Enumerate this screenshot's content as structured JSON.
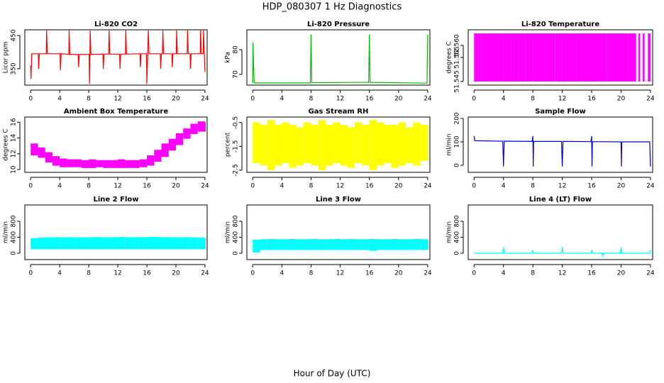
{
  "title": "HDP_080307  1 Hz Diagnostics",
  "x_label": "Hour of Day (UTC)",
  "chart_data": [
    {
      "type": "line",
      "title": "Li-820 CO2",
      "y_label": "Licor ppm",
      "color": "#ff0000",
      "xlim": [
        -0.8,
        24.3
      ],
      "xticks": [
        0,
        4,
        8,
        12,
        16,
        20,
        24
      ],
      "ylim": [
        301,
        467
      ],
      "yticks": [
        350,
        450
      ],
      "x": [
        0,
        0.05,
        0.15,
        1.05,
        1.1,
        1.2,
        2.15,
        2.2,
        2.3,
        4.05,
        4.1,
        4.2,
        5.25,
        5.3,
        5.4,
        6.55,
        6.6,
        6.7,
        8.05,
        8.1,
        8.2,
        8.3,
        9.95,
        10,
        10.1,
        10.75,
        10.8,
        10.9,
        12.25,
        12.3,
        12.4,
        13.05,
        13.1,
        13.2,
        15.05,
        15.1,
        15.2,
        15.95,
        16,
        16.2,
        16.3,
        17.85,
        17.9,
        18,
        18.15,
        18.2,
        18.3,
        19.45,
        19.5,
        19.6,
        20.05,
        20.1,
        20.2,
        21.55,
        21.6,
        21.7,
        21.95,
        22,
        22.1,
        23.35,
        23.4,
        23.5,
        23.75,
        23.8,
        24
      ],
      "values": [
        360,
        320,
        395,
        395,
        350,
        395,
        395,
        465,
        395,
        395,
        345,
        395,
        393,
        465,
        393,
        393,
        355,
        393,
        393,
        305,
        465,
        393,
        394,
        350,
        394,
        394,
        465,
        394,
        394,
        350,
        394,
        394,
        465,
        394,
        395,
        355,
        395,
        395,
        305,
        465,
        395,
        395,
        350,
        395,
        395,
        465,
        395,
        395,
        355,
        395,
        395,
        465,
        395,
        395,
        465,
        395,
        395,
        350,
        395,
        395,
        465,
        395,
        395,
        465,
        340
      ]
    },
    {
      "type": "line",
      "title": "Li-820 Pressure",
      "y_label": "kPa",
      "color": "#00bb00",
      "xlim": [
        -0.8,
        24.3
      ],
      "xticks": [
        0,
        4,
        8,
        12,
        16,
        20,
        24
      ],
      "ylim": [
        65.7,
        88
      ],
      "yticks": [
        70,
        80
      ],
      "x": [
        0,
        0.05,
        0.1,
        0.2,
        7.9,
        8,
        8.1,
        15.9,
        16,
        16.1,
        23.9,
        24
      ],
      "values": [
        66.5,
        83,
        75,
        66.6,
        66.6,
        86,
        66.7,
        66.8,
        86,
        66.8,
        66.5,
        86
      ]
    },
    {
      "type": "band",
      "title": "Li-820 Temperature",
      "y_label": "degrees C",
      "color": "#ff00ff",
      "xlim": [
        -0.8,
        24.3
      ],
      "xticks": [
        0,
        4,
        8,
        12,
        16,
        20,
        24
      ],
      "ylim": [
        51.5435,
        51.5665
      ],
      "yticks": [
        51.545,
        51.555,
        {
          "value": 51.56,
          "label": "51.560"
        }
      ],
      "x": [
        0,
        1,
        2,
        3,
        4,
        5,
        6,
        7,
        8,
        9,
        10,
        11,
        12,
        13,
        14,
        15,
        16,
        17,
        18,
        19,
        20,
        21,
        22.05,
        22.35,
        22.6,
        22.95,
        23.2,
        23.65,
        24
      ],
      "low": [
        51.545,
        51.545,
        51.545,
        51.545,
        51.545,
        51.545,
        51.545,
        51.545,
        51.545,
        51.545,
        51.545,
        51.545,
        51.545,
        51.545,
        51.545,
        51.545,
        51.545,
        51.545,
        51.545,
        51.545,
        51.545,
        51.545,
        null,
        51.545,
        null,
        51.545,
        null,
        51.545,
        null
      ],
      "high": [
        51.565,
        51.565,
        51.565,
        51.565,
        51.565,
        51.565,
        51.565,
        51.565,
        51.565,
        51.565,
        51.565,
        51.565,
        51.565,
        51.565,
        51.565,
        51.565,
        51.565,
        51.565,
        51.565,
        51.565,
        51.565,
        51.565,
        null,
        51.565,
        null,
        51.565,
        null,
        51.565,
        null
      ]
    },
    {
      "type": "band",
      "title": "Ambient Box Temperature",
      "y_label": "degrees C",
      "color": "#ff00ff",
      "xlim": [
        -0.8,
        24.3
      ],
      "xticks": [
        0,
        4,
        8,
        12,
        16,
        20,
        24
      ],
      "ylim": [
        9.65,
        16.65
      ],
      "yticks": [
        10,
        12,
        14,
        16
      ],
      "x": [
        0,
        1,
        2,
        3,
        4,
        5,
        6,
        7,
        8,
        9,
        10,
        11,
        12,
        13,
        14,
        15,
        16,
        17,
        18,
        19,
        20,
        21,
        22,
        23,
        24
      ],
      "low": [
        11.8,
        11.5,
        10.9,
        10.5,
        10.3,
        10.3,
        10.3,
        10.2,
        10.2,
        10.3,
        10.2,
        10.2,
        10.2,
        10.2,
        10.2,
        10.3,
        10.5,
        11,
        11.6,
        12.4,
        13.1,
        13.9,
        14.5,
        14.8,
        14.8
      ],
      "high": [
        13.3,
        12.8,
        12.2,
        11.7,
        11.4,
        11.3,
        11.3,
        11.2,
        11.3,
        11.2,
        11.2,
        11.2,
        11.3,
        11.2,
        11.2,
        11.3,
        11.8,
        12.5,
        13.3,
        13.9,
        14.6,
        15.2,
        15.8,
        16.1,
        16
      ]
    },
    {
      "type": "band",
      "title": "Gas Stream RH",
      "y_label": "percent",
      "color": "#ffff00",
      "xlim": [
        -0.8,
        24.3
      ],
      "xticks": [
        0,
        4,
        8,
        12,
        16,
        20,
        24
      ],
      "ylim": [
        -2.59,
        -0.27
      ],
      "yticks": [
        -2.5,
        -1.5,
        -0.5
      ],
      "x": [
        0,
        1,
        2,
        3,
        4,
        5,
        6,
        7,
        8,
        9,
        10,
        11,
        12,
        13,
        14,
        15,
        16,
        17,
        18,
        19,
        20,
        21,
        22,
        23,
        24
      ],
      "low": [
        -2.2,
        -2.3,
        -2.5,
        -2.3,
        -2.2,
        -2.4,
        -2.3,
        -2.2,
        -2.3,
        -2.5,
        -2.3,
        -2.2,
        -2.3,
        -2.4,
        -2.2,
        -2.3,
        -2.5,
        -2.3,
        -2.2,
        -2.4,
        -2.3,
        -2.2,
        -2.3,
        -2.1,
        -2.2
      ],
      "high": [
        -0.5,
        -0.6,
        -0.4,
        -0.6,
        -0.5,
        -0.6,
        -0.7,
        -0.5,
        -0.6,
        -0.4,
        -0.6,
        -0.5,
        -0.6,
        -0.7,
        -0.5,
        -0.6,
        -0.4,
        -0.5,
        -0.6,
        -0.6,
        -0.5,
        -0.7,
        -0.5,
        -0.6,
        -0.6
      ]
    },
    {
      "type": "line",
      "title": "Sample Flow",
      "y_label": "ml/min",
      "color": "#0000dd",
      "xlim": [
        -0.8,
        24.3
      ],
      "xticks": [
        0,
        4,
        8,
        12,
        16,
        20,
        24
      ],
      "ylim": [
        -30,
        206
      ],
      "yticks": [
        0,
        100,
        200
      ],
      "x": [
        0,
        0.1,
        3.9,
        4,
        4.1,
        7.9,
        8,
        8.05,
        8.1,
        11.9,
        12,
        12.1,
        15.9,
        16,
        16.05,
        16.1,
        19.9,
        20,
        20.05,
        20.1,
        23.9,
        24
      ],
      "values": [
        125,
        105,
        103,
        -5,
        103,
        102,
        125,
        -5,
        102,
        102,
        -5,
        102,
        101,
        125,
        -5,
        101,
        100,
        95,
        -5,
        100,
        100,
        -5
      ]
    },
    {
      "type": "band",
      "title": "Line 2 Flow",
      "y_label": "ml/min",
      "color": "#00ffff",
      "xlim": [
        -0.8,
        24.3
      ],
      "xticks": [
        0,
        4,
        8,
        12,
        16,
        20,
        24
      ],
      "ylim": [
        -160,
        1208
      ],
      "yticks": [
        0,
        400,
        800
      ],
      "x": [
        0,
        1,
        2,
        3,
        4,
        5,
        6,
        7,
        8,
        9,
        10,
        11,
        12,
        13,
        14,
        15,
        16,
        17,
        18,
        19,
        20,
        21,
        22,
        23,
        24
      ],
      "low": [
        100,
        100,
        100,
        100,
        100,
        100,
        100,
        100,
        100,
        100,
        100,
        100,
        100,
        100,
        100,
        100,
        100,
        100,
        100,
        100,
        100,
        100,
        100,
        100,
        100
      ],
      "high": [
        380,
        390,
        395,
        400,
        395,
        400,
        395,
        395,
        400,
        400,
        395,
        400,
        405,
        400,
        400,
        400,
        410,
        405,
        400,
        400,
        395,
        400,
        395,
        390,
        380
      ]
    },
    {
      "type": "band",
      "title": "Line 3 Flow",
      "y_label": "ml/min",
      "color": "#00ffff",
      "xlim": [
        -0.8,
        24.3
      ],
      "xticks": [
        0,
        4,
        8,
        12,
        16,
        20,
        24
      ],
      "ylim": [
        -160,
        1208
      ],
      "yticks": [
        0,
        400,
        800
      ],
      "x": [
        0,
        1,
        2,
        3,
        4,
        5,
        6,
        7,
        8,
        9,
        10,
        11,
        12,
        13,
        14,
        15,
        16,
        17,
        18,
        19,
        20,
        21,
        22,
        23,
        24
      ],
      "low": [
        20,
        80,
        80,
        80,
        80,
        80,
        80,
        80,
        80,
        80,
        80,
        80,
        80,
        80,
        80,
        80,
        60,
        80,
        80,
        80,
        80,
        80,
        80,
        80,
        80
      ],
      "high": [
        340,
        350,
        355,
        350,
        350,
        355,
        350,
        350,
        355,
        350,
        350,
        355,
        350,
        355,
        350,
        350,
        355,
        350,
        350,
        355,
        350,
        350,
        355,
        350,
        345
      ]
    },
    {
      "type": "line",
      "title": "Line 4 (LT) Flow",
      "y_label": "ml/min",
      "color": "#00ffff",
      "xlim": [
        -0.8,
        24.3
      ],
      "xticks": [
        0,
        4,
        8,
        12,
        16,
        20,
        24
      ],
      "ylim": [
        -160,
        1208
      ],
      "yticks": [
        0,
        400,
        800
      ],
      "x": [
        0,
        3.9,
        4,
        4.1,
        7.9,
        8,
        8.1,
        11.9,
        12,
        12.1,
        15.9,
        16,
        16.1,
        17.4,
        17.5,
        17.6,
        19.9,
        20,
        20.1,
        23.9,
        24
      ],
      "values": [
        0,
        0,
        150,
        0,
        0,
        80,
        0,
        0,
        150,
        0,
        0,
        80,
        0,
        0,
        -80,
        0,
        0,
        150,
        0,
        0,
        80
      ]
    }
  ]
}
